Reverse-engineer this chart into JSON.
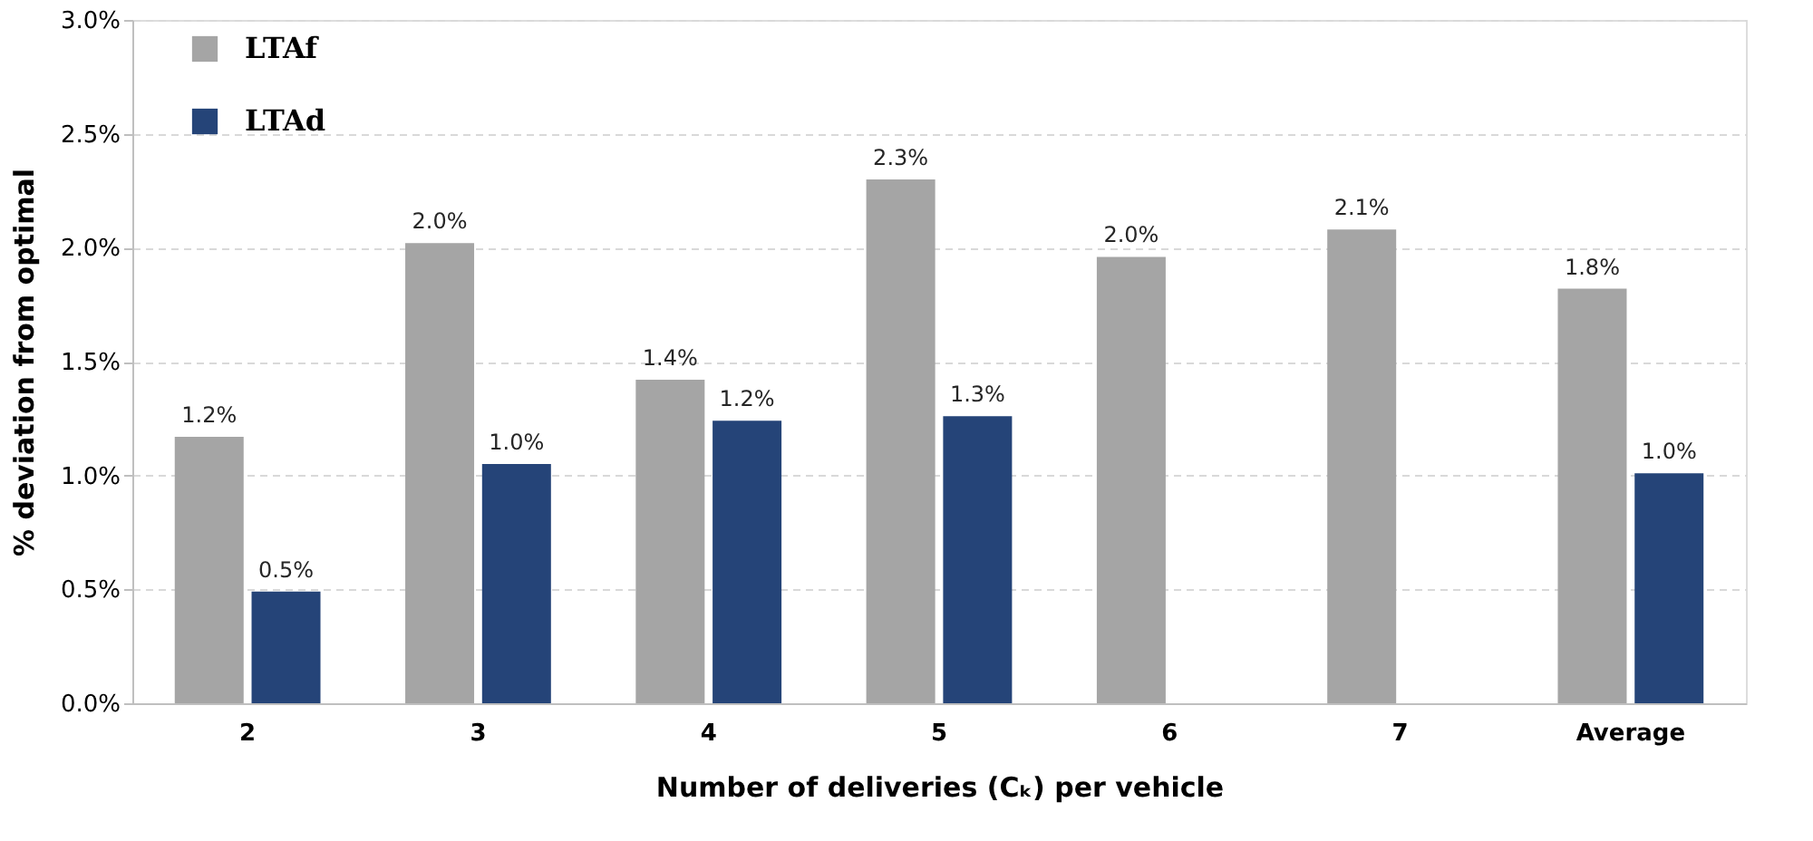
{
  "chart_data": {
    "type": "bar",
    "xlabel": "Number of deliveries (Cₖ) per vehicle",
    "ylabel": "% deviation from optimal",
    "categories": [
      "2",
      "3",
      "4",
      "5",
      "6",
      "7",
      "Average"
    ],
    "series": [
      {
        "name": "LTAf",
        "color": "#a5a5a5",
        "values": [
          1.17,
          2.02,
          1.42,
          2.3,
          1.96,
          2.08,
          1.82
        ],
        "value_labels": [
          "1.2%",
          "2.0%",
          "1.4%",
          "2.3%",
          "2.0%",
          "2.1%",
          "1.8%"
        ]
      },
      {
        "name": "LTAd",
        "color": "#254478",
        "values": [
          0.49,
          1.05,
          1.24,
          1.26,
          null,
          null,
          1.01
        ],
        "value_labels": [
          "0.5%",
          "1.0%",
          "1.2%",
          "1.3%",
          null,
          null,
          "1.0%"
        ]
      }
    ],
    "ylim": [
      0,
      3.0
    ],
    "yticks": [
      {
        "value": 0,
        "label": "0.0%"
      },
      {
        "value": 0.5,
        "label": "0.5%"
      },
      {
        "value": 1.0,
        "label": "1.0%"
      },
      {
        "value": 1.5,
        "label": "1.5%"
      },
      {
        "value": 2.0,
        "label": "2.0%"
      },
      {
        "value": 2.5,
        "label": "2.5%"
      },
      {
        "value": 3.0,
        "label": "3.0%"
      }
    ],
    "grid": "y",
    "legend": "top left"
  }
}
